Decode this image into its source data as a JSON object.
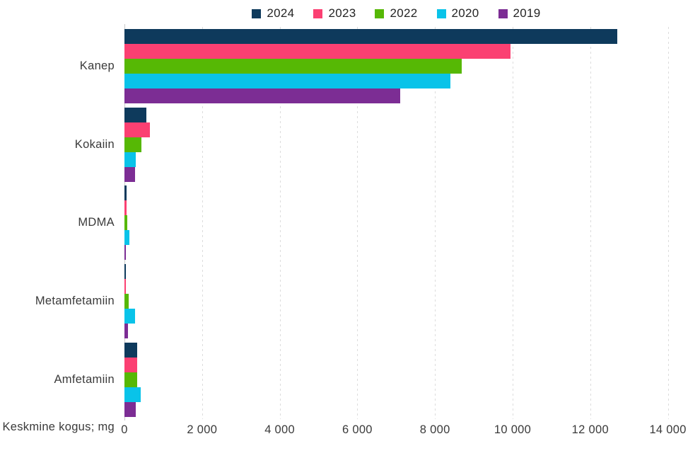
{
  "styles": {
    "background": "#ffffff",
    "grid_color": "#dcdcdc",
    "axis_line_color": "#c9c9c9",
    "text_color": "#3a3a3a"
  },
  "chart_data": {
    "type": "bar",
    "orientation": "horizontal",
    "title": "",
    "xlabel": "Keskmine kogus; mg",
    "categories": [
      "Kanep",
      "Kokaiin",
      "MDMA",
      "Metamfetamiin",
      "Amfetamiin"
    ],
    "series": [
      {
        "name": "2024",
        "color": "#0e3a5c",
        "values": [
          12700,
          560,
          55,
          45,
          330
        ]
      },
      {
        "name": "2023",
        "color": "#fb4072",
        "values": [
          9950,
          650,
          55,
          45,
          330
        ]
      },
      {
        "name": "2022",
        "color": "#56b805",
        "values": [
          8690,
          440,
          75,
          110,
          330
        ]
      },
      {
        "name": "2020",
        "color": "#09c3e9",
        "values": [
          8400,
          300,
          130,
          275,
          410
        ]
      },
      {
        "name": "2019",
        "color": "#7c2d94",
        "values": [
          7100,
          280,
          40,
          90,
          300
        ]
      }
    ],
    "xlim": [
      0,
      14000
    ],
    "xticks": [
      0,
      2000,
      4000,
      6000,
      8000,
      10000,
      12000,
      14000
    ],
    "xtick_labels": [
      "0",
      "2 000",
      "4 000",
      "6 000",
      "8 000",
      "10 000",
      "12 000",
      "14 000"
    ],
    "grid": "vertical-dashed",
    "legend_position": "top-center"
  }
}
